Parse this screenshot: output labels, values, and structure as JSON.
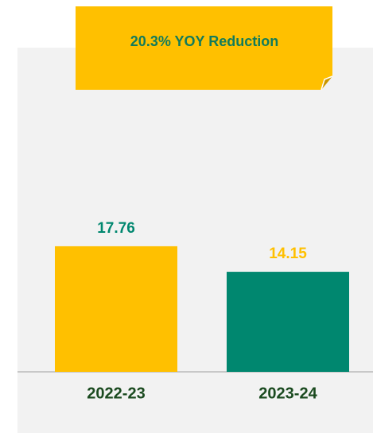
{
  "chart_data": {
    "type": "bar",
    "annotation": "20.3% YOY Reduction",
    "categories": [
      "2022-23",
      "2023-24"
    ],
    "values": [
      17.76,
      14.15
    ],
    "colors": [
      "#ffc000",
      "#00876f"
    ],
    "label_colors": [
      "#00876f",
      "#ffc000"
    ],
    "ylim": [
      0,
      20
    ]
  }
}
